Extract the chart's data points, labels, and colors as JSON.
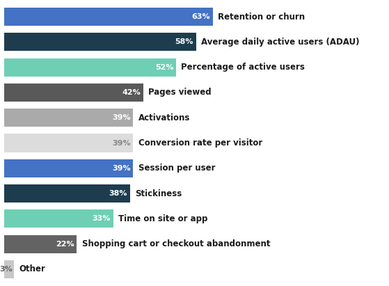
{
  "categories": [
    "Other",
    "Shopping cart or checkout abandonment",
    "Time on site or app",
    "Stickiness",
    "Session per user",
    "Conversion rate per visitor",
    "Activations",
    "Pages viewed",
    "Percentage of active users",
    "Average daily active users (ADAU)",
    "Retention or churn"
  ],
  "values": [
    3,
    22,
    33,
    38,
    39,
    39,
    39,
    42,
    52,
    58,
    63
  ],
  "colors": [
    "#c8c8c8",
    "#636363",
    "#6ecfb4",
    "#1d3d4f",
    "#4472c4",
    "#dcdcdc",
    "#aaaaaa",
    "#595959",
    "#6ecfb4",
    "#1d3d4f",
    "#4472c4"
  ],
  "label_colors": [
    "#666666",
    "#ffffff",
    "#ffffff",
    "#ffffff",
    "#ffffff",
    "#888888",
    "#ffffff",
    "#ffffff",
    "#ffffff",
    "#ffffff",
    "#ffffff"
  ],
  "background_color": "#ffffff",
  "bar_height": 0.72,
  "xlim": [
    0,
    115
  ],
  "fontsize_labels": 8.5,
  "fontsize_values": 8.0,
  "text_color": "#1a1a1a"
}
